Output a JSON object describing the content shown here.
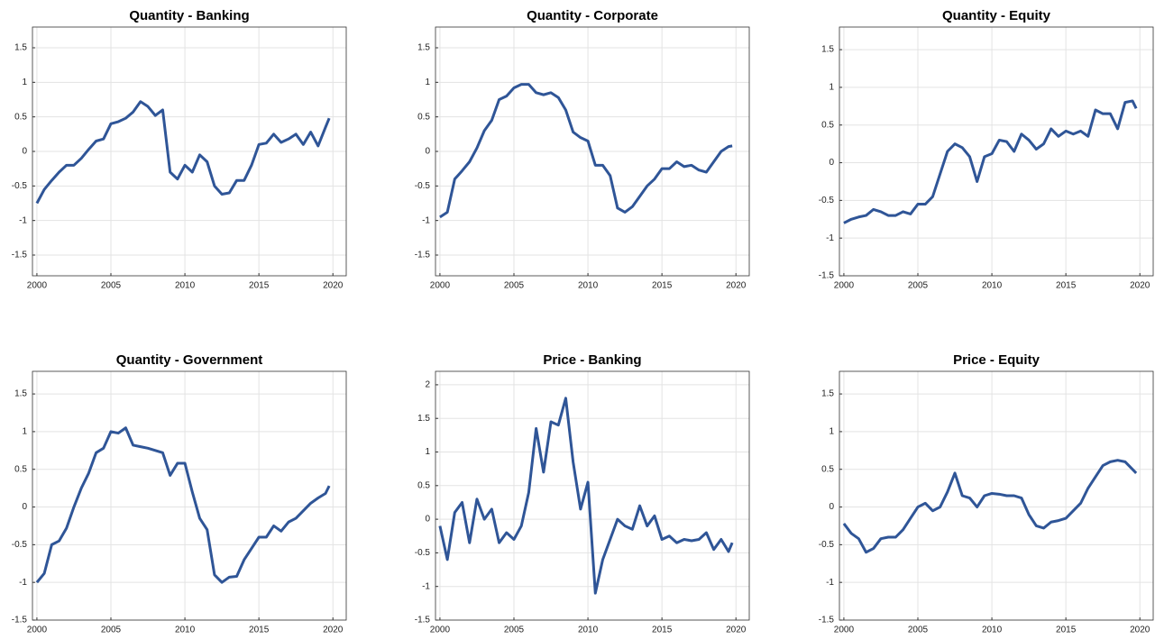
{
  "chart_data": [
    {
      "type": "line",
      "title": "Quantity - Banking",
      "color": "#2f5597",
      "grid": true,
      "xlim": [
        1999.7,
        2020.9
      ],
      "xticks": [
        2000,
        2005,
        2010,
        2015,
        2020
      ],
      "ylim": [
        -1.8,
        1.8
      ],
      "yticks": [
        -1.5,
        -1,
        -0.5,
        0,
        0.5,
        1,
        1.5
      ],
      "x": [
        2000,
        2000.5,
        2001,
        2001.5,
        2002,
        2002.5,
        2003,
        2003.5,
        2004,
        2004.5,
        2005,
        2005.5,
        2006,
        2006.5,
        2007,
        2007.5,
        2008,
        2008.5,
        2009,
        2009.5,
        2010,
        2010.5,
        2011,
        2011.5,
        2012,
        2012.5,
        2013,
        2013.5,
        2014,
        2014.5,
        2015,
        2015.5,
        2016,
        2016.5,
        2017,
        2017.5,
        2018,
        2018.5,
        2019,
        2019.5,
        2019.75
      ],
      "values": [
        -0.75,
        -0.55,
        -0.42,
        -0.3,
        -0.2,
        -0.2,
        -0.1,
        0.03,
        0.15,
        0.18,
        0.4,
        0.43,
        0.48,
        0.57,
        0.72,
        0.65,
        0.52,
        0.6,
        -0.3,
        -0.4,
        -0.2,
        -0.3,
        -0.05,
        -0.15,
        -0.5,
        -0.62,
        -0.6,
        -0.42,
        -0.42,
        -0.2,
        0.1,
        0.12,
        0.25,
        0.13,
        0.18,
        0.25,
        0.1,
        0.28,
        0.08,
        0.35,
        0.48
      ]
    },
    {
      "type": "line",
      "title": "Quantity - Corporate",
      "color": "#2f5597",
      "grid": true,
      "xlim": [
        1999.7,
        2020.9
      ],
      "xticks": [
        2000,
        2005,
        2010,
        2015,
        2020
      ],
      "ylim": [
        -1.8,
        1.8
      ],
      "yticks": [
        -1.5,
        -1,
        -0.5,
        0,
        0.5,
        1,
        1.5
      ],
      "x": [
        2000,
        2000.5,
        2001,
        2001.5,
        2002,
        2002.5,
        2003,
        2003.5,
        2004,
        2004.5,
        2005,
        2005.5,
        2006,
        2006.5,
        2007,
        2007.5,
        2008,
        2008.5,
        2009,
        2009.5,
        2010,
        2010.5,
        2011,
        2011.5,
        2012,
        2012.5,
        2013,
        2013.5,
        2014,
        2014.5,
        2015,
        2015.5,
        2016,
        2016.5,
        2017,
        2017.5,
        2018,
        2018.5,
        2019,
        2019.5,
        2019.75
      ],
      "values": [
        -0.95,
        -0.88,
        -0.4,
        -0.28,
        -0.15,
        0.05,
        0.3,
        0.45,
        0.75,
        0.8,
        0.92,
        0.97,
        0.97,
        0.85,
        0.82,
        0.85,
        0.78,
        0.6,
        0.28,
        0.2,
        0.15,
        -0.2,
        -0.2,
        -0.35,
        -0.82,
        -0.88,
        -0.8,
        -0.65,
        -0.5,
        -0.4,
        -0.25,
        -0.25,
        -0.15,
        -0.22,
        -0.2,
        -0.27,
        -0.3,
        -0.15,
        0,
        0.07,
        0.08
      ]
    },
    {
      "type": "line",
      "title": "Quantity - Equity",
      "color": "#2f5597",
      "grid": true,
      "xlim": [
        1999.7,
        2020.9
      ],
      "xticks": [
        2000,
        2005,
        2010,
        2015,
        2020
      ],
      "ylim": [
        -1.5,
        1.8
      ],
      "yticks": [
        -1.5,
        -1,
        -0.5,
        0,
        0.5,
        1,
        1.5
      ],
      "x": [
        2000,
        2000.5,
        2001,
        2001.5,
        2002,
        2002.5,
        2003,
        2003.5,
        2004,
        2004.5,
        2005,
        2005.5,
        2006,
        2006.5,
        2007,
        2007.5,
        2008,
        2008.5,
        2009,
        2009.5,
        2010,
        2010.5,
        2011,
        2011.5,
        2012,
        2012.5,
        2013,
        2013.5,
        2014,
        2014.5,
        2015,
        2015.5,
        2016,
        2016.5,
        2017,
        2017.5,
        2018,
        2018.5,
        2019,
        2019.5,
        2019.75
      ],
      "values": [
        -0.8,
        -0.75,
        -0.72,
        -0.7,
        -0.62,
        -0.65,
        -0.7,
        -0.7,
        -0.65,
        -0.68,
        -0.55,
        -0.55,
        -0.45,
        -0.15,
        0.15,
        0.25,
        0.2,
        0.08,
        -0.25,
        0.08,
        0.12,
        0.3,
        0.28,
        0.15,
        0.38,
        0.3,
        0.18,
        0.25,
        0.45,
        0.35,
        0.42,
        0.38,
        0.42,
        0.35,
        0.7,
        0.65,
        0.65,
        0.45,
        0.8,
        0.82,
        0.72
      ]
    },
    {
      "type": "line",
      "title": "Quantity - Government",
      "color": "#2f5597",
      "grid": true,
      "xlim": [
        1999.7,
        2020.9
      ],
      "xticks": [
        2000,
        2005,
        2010,
        2015,
        2020
      ],
      "ylim": [
        -1.5,
        1.8
      ],
      "yticks": [
        -1.5,
        -1,
        -0.5,
        0,
        0.5,
        1,
        1.5
      ],
      "x": [
        2000,
        2000.5,
        2001,
        2001.5,
        2002,
        2002.5,
        2003,
        2003.5,
        2004,
        2004.5,
        2005,
        2005.5,
        2006,
        2006.5,
        2007,
        2007.5,
        2008,
        2008.5,
        2009,
        2009.5,
        2010,
        2010.5,
        2011,
        2011.5,
        2012,
        2012.5,
        2013,
        2013.5,
        2014,
        2014.5,
        2015,
        2015.5,
        2016,
        2016.5,
        2017,
        2017.5,
        2018,
        2018.5,
        2019,
        2019.5,
        2019.75
      ],
      "values": [
        -1.0,
        -0.88,
        -0.5,
        -0.45,
        -0.28,
        0.0,
        0.25,
        0.45,
        0.72,
        0.78,
        1.0,
        0.98,
        1.05,
        0.82,
        0.8,
        0.78,
        0.75,
        0.72,
        0.42,
        0.58,
        0.58,
        0.2,
        -0.15,
        -0.3,
        -0.9,
        -1.0,
        -0.93,
        -0.92,
        -0.7,
        -0.55,
        -0.4,
        -0.4,
        -0.25,
        -0.32,
        -0.2,
        -0.15,
        -0.05,
        0.05,
        0.12,
        0.18,
        0.28
      ]
    },
    {
      "type": "line",
      "title": "Price - Banking",
      "color": "#2f5597",
      "grid": true,
      "xlim": [
        1999.7,
        2020.9
      ],
      "xticks": [
        2000,
        2005,
        2010,
        2015,
        2020
      ],
      "ylim": [
        -1.5,
        2.2
      ],
      "yticks": [
        -1.5,
        -1,
        -0.5,
        0,
        0.5,
        1,
        1.5,
        2
      ],
      "x": [
        2000,
        2000.5,
        2001,
        2001.5,
        2002,
        2002.5,
        2003,
        2003.5,
        2004,
        2004.5,
        2005,
        2005.5,
        2006,
        2006.5,
        2007,
        2007.5,
        2008,
        2008.5,
        2009,
        2009.5,
        2010,
        2010.5,
        2011,
        2011.5,
        2012,
        2012.5,
        2013,
        2013.5,
        2014,
        2014.5,
        2015,
        2015.5,
        2016,
        2016.5,
        2017,
        2017.5,
        2018,
        2018.5,
        2019,
        2019.5,
        2019.75
      ],
      "values": [
        -0.1,
        -0.6,
        0.1,
        0.25,
        -0.35,
        0.3,
        0.0,
        0.15,
        -0.35,
        -0.2,
        -0.3,
        -0.1,
        0.4,
        1.35,
        0.7,
        1.45,
        1.4,
        1.8,
        0.85,
        0.15,
        0.55,
        -1.1,
        -0.6,
        -0.3,
        0.0,
        -0.1,
        -0.15,
        0.2,
        -0.1,
        0.05,
        -0.3,
        -0.25,
        -0.35,
        -0.3,
        -0.32,
        -0.3,
        -0.2,
        -0.45,
        -0.3,
        -0.48,
        -0.35
      ]
    },
    {
      "type": "line",
      "title": "Price - Equity",
      "color": "#2f5597",
      "grid": true,
      "xlim": [
        1999.7,
        2020.9
      ],
      "xticks": [
        2000,
        2005,
        2010,
        2015,
        2020
      ],
      "ylim": [
        -1.5,
        1.8
      ],
      "yticks": [
        -1.5,
        -1,
        -0.5,
        0,
        0.5,
        1,
        1.5
      ],
      "x": [
        2000,
        2000.5,
        2001,
        2001.5,
        2002,
        2002.5,
        2003,
        2003.5,
        2004,
        2004.5,
        2005,
        2005.5,
        2006,
        2006.5,
        2007,
        2007.5,
        2008,
        2008.5,
        2009,
        2009.5,
        2010,
        2010.5,
        2011,
        2011.5,
        2012,
        2012.5,
        2013,
        2013.5,
        2014,
        2014.5,
        2015,
        2015.5,
        2016,
        2016.5,
        2017,
        2017.5,
        2018,
        2018.5,
        2019,
        2019.5,
        2019.75
      ],
      "values": [
        -0.22,
        -0.35,
        -0.42,
        -0.6,
        -0.55,
        -0.42,
        -0.4,
        -0.4,
        -0.3,
        -0.15,
        0.0,
        0.05,
        -0.05,
        0.0,
        0.2,
        0.45,
        0.15,
        0.12,
        0.0,
        0.15,
        0.18,
        0.17,
        0.15,
        0.15,
        0.12,
        -0.1,
        -0.25,
        -0.28,
        -0.2,
        -0.18,
        -0.15,
        -0.05,
        0.05,
        0.25,
        0.4,
        0.55,
        0.6,
        0.62,
        0.6,
        0.5,
        0.45
      ]
    }
  ]
}
